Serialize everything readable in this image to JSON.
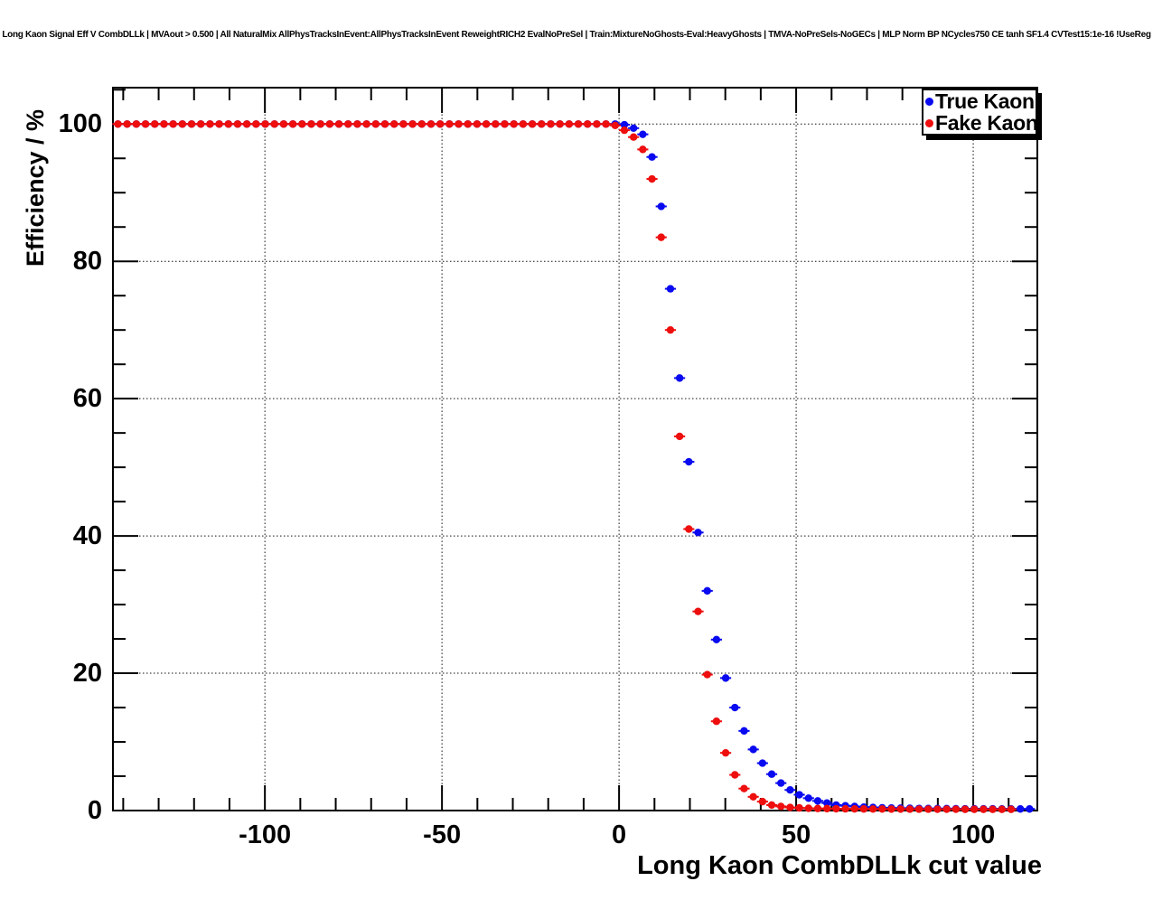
{
  "chart_data": {
    "type": "scatter",
    "title": "Long Kaon Signal Eff V CombDLLk | MVAout > 0.500 | All NaturalMix AllPhysTracksInEvent:AllPhysTracksInEvent ReweightRICH2 EvalNoPreSel | Train:MixtureNoGhosts-Eval:HeavyGhosts | TMVA-NoPreSels-NoGECs | MLP Norm BP NCycles750 CE tanh SF1.4 CVTest15:1e-16 !UseReg",
    "xlabel": "Long Kaon CombDLLk cut value",
    "ylabel": "Efficiency / %",
    "xlim": [
      -142.9,
      118.1
    ],
    "ylim": [
      0,
      105.3
    ],
    "xticks": [
      -100,
      -50,
      0,
      50,
      100
    ],
    "yticks": [
      0,
      20,
      40,
      60,
      80,
      100
    ],
    "x_minor_step": 10,
    "y_minor_step": 5,
    "grid": {
      "style": "dotted",
      "color": "#111111",
      "at_major_ticks": true
    },
    "frame_color": "#000000",
    "legend": {
      "position": "top-right",
      "shadow": true,
      "entries": [
        "True Kaon",
        "Fake Kaon"
      ]
    },
    "series": [
      {
        "name": "True Kaon",
        "color": "#0a0af0",
        "marker": "filled-circle",
        "points": [
          [
            -141.5,
            100
          ],
          [
            -138.9,
            100
          ],
          [
            -136.3,
            100
          ],
          [
            -133.7,
            100
          ],
          [
            -131.1,
            100
          ],
          [
            -128.5,
            100
          ],
          [
            -125.9,
            100
          ],
          [
            -123.3,
            100
          ],
          [
            -120.7,
            100
          ],
          [
            -118.1,
            100
          ],
          [
            -115.5,
            100
          ],
          [
            -112.9,
            100
          ],
          [
            -110.3,
            100
          ],
          [
            -107.7,
            100
          ],
          [
            -105.1,
            100
          ],
          [
            -102.5,
            100
          ],
          [
            -99.9,
            100
          ],
          [
            -97.3,
            100
          ],
          [
            -94.7,
            100
          ],
          [
            -92.1,
            100
          ],
          [
            -89.5,
            100
          ],
          [
            -86.9,
            100
          ],
          [
            -84.3,
            100
          ],
          [
            -81.7,
            100
          ],
          [
            -79.1,
            100
          ],
          [
            -76.5,
            100
          ],
          [
            -73.9,
            100
          ],
          [
            -71.3,
            100
          ],
          [
            -68.7,
            100
          ],
          [
            -66.1,
            100
          ],
          [
            -63.5,
            100
          ],
          [
            -60.9,
            100
          ],
          [
            -58.3,
            100
          ],
          [
            -55.7,
            100
          ],
          [
            -53.1,
            100
          ],
          [
            -50.5,
            100
          ],
          [
            -47.9,
            100
          ],
          [
            -45.3,
            100
          ],
          [
            -42.7,
            100
          ],
          [
            -40.1,
            100
          ],
          [
            -37.5,
            100
          ],
          [
            -34.9,
            100
          ],
          [
            -32.3,
            100
          ],
          [
            -29.7,
            100
          ],
          [
            -27.1,
            100
          ],
          [
            -24.5,
            100
          ],
          [
            -21.9,
            100
          ],
          [
            -19.3,
            100
          ],
          [
            -16.7,
            100
          ],
          [
            -14.1,
            100
          ],
          [
            -11.5,
            100
          ],
          [
            -8.9,
            100
          ],
          [
            -6.3,
            100
          ],
          [
            -3.7,
            100
          ],
          [
            -1.1,
            100
          ],
          [
            1.5,
            99.9
          ],
          [
            4.1,
            99.4
          ],
          [
            6.7,
            98.5
          ],
          [
            9.3,
            95.2
          ],
          [
            11.9,
            88.0
          ],
          [
            14.5,
            76.0
          ],
          [
            17.1,
            63.0
          ],
          [
            19.7,
            50.8
          ],
          [
            22.3,
            40.5
          ],
          [
            24.9,
            32.0
          ],
          [
            27.5,
            24.9
          ],
          [
            30.1,
            19.3
          ],
          [
            32.7,
            15.0
          ],
          [
            35.3,
            11.6
          ],
          [
            37.9,
            8.9
          ],
          [
            40.5,
            6.9
          ],
          [
            43.1,
            5.3
          ],
          [
            45.7,
            4.0
          ],
          [
            48.3,
            3.0
          ],
          [
            50.9,
            2.3
          ],
          [
            53.5,
            1.8
          ],
          [
            56.1,
            1.4
          ],
          [
            58.7,
            1.1
          ],
          [
            61.3,
            0.8
          ],
          [
            63.9,
            0.7
          ],
          [
            66.5,
            0.6
          ],
          [
            69.1,
            0.5
          ],
          [
            71.7,
            0.45
          ],
          [
            74.3,
            0.4
          ],
          [
            76.9,
            0.37
          ],
          [
            79.5,
            0.35
          ],
          [
            82.1,
            0.33
          ],
          [
            84.7,
            0.31
          ],
          [
            87.3,
            0.3
          ],
          [
            89.9,
            0.29
          ],
          [
            92.5,
            0.28
          ],
          [
            95.1,
            0.27
          ],
          [
            97.7,
            0.26
          ],
          [
            100.3,
            0.26
          ],
          [
            102.9,
            0.25
          ],
          [
            105.5,
            0.25
          ],
          [
            108.1,
            0.24
          ],
          [
            110.7,
            0.24
          ],
          [
            113.3,
            0.23
          ],
          [
            115.9,
            0.23
          ]
        ]
      },
      {
        "name": "Fake Kaon",
        "color": "#ee0e0e",
        "marker": "filled-circle",
        "points": [
          [
            -141.5,
            100
          ],
          [
            -138.9,
            100
          ],
          [
            -136.3,
            100
          ],
          [
            -133.7,
            100
          ],
          [
            -131.1,
            100
          ],
          [
            -128.5,
            100
          ],
          [
            -125.9,
            100
          ],
          [
            -123.3,
            100
          ],
          [
            -120.7,
            100
          ],
          [
            -118.1,
            100
          ],
          [
            -115.5,
            100
          ],
          [
            -112.9,
            100
          ],
          [
            -110.3,
            100
          ],
          [
            -107.7,
            100
          ],
          [
            -105.1,
            100
          ],
          [
            -102.5,
            100
          ],
          [
            -99.9,
            100
          ],
          [
            -97.3,
            100
          ],
          [
            -94.7,
            100
          ],
          [
            -92.1,
            100
          ],
          [
            -89.5,
            100
          ],
          [
            -86.9,
            100
          ],
          [
            -84.3,
            100
          ],
          [
            -81.7,
            100
          ],
          [
            -79.1,
            100
          ],
          [
            -76.5,
            100
          ],
          [
            -73.9,
            100
          ],
          [
            -71.3,
            100
          ],
          [
            -68.7,
            100
          ],
          [
            -66.1,
            100
          ],
          [
            -63.5,
            100
          ],
          [
            -60.9,
            100
          ],
          [
            -58.3,
            100
          ],
          [
            -55.7,
            100
          ],
          [
            -53.1,
            100
          ],
          [
            -50.5,
            100
          ],
          [
            -47.9,
            100
          ],
          [
            -45.3,
            100
          ],
          [
            -42.7,
            100
          ],
          [
            -40.1,
            100
          ],
          [
            -37.5,
            100
          ],
          [
            -34.9,
            100
          ],
          [
            -32.3,
            100
          ],
          [
            -29.7,
            100
          ],
          [
            -27.1,
            100
          ],
          [
            -24.5,
            100
          ],
          [
            -21.9,
            100
          ],
          [
            -19.3,
            100
          ],
          [
            -16.7,
            100
          ],
          [
            -14.1,
            100
          ],
          [
            -11.5,
            100
          ],
          [
            -8.9,
            100
          ],
          [
            -6.3,
            100
          ],
          [
            -3.7,
            100
          ],
          [
            -1.1,
            99.8
          ],
          [
            1.5,
            99.1
          ],
          [
            4.1,
            98.1
          ],
          [
            6.7,
            96.3
          ],
          [
            9.3,
            92.0
          ],
          [
            11.9,
            83.5
          ],
          [
            14.5,
            70.0
          ],
          [
            17.1,
            54.5
          ],
          [
            19.7,
            41.0
          ],
          [
            22.3,
            29.0
          ],
          [
            24.9,
            19.8
          ],
          [
            27.5,
            13.0
          ],
          [
            30.1,
            8.4
          ],
          [
            32.7,
            5.2
          ],
          [
            35.3,
            3.2
          ],
          [
            37.9,
            2.0
          ],
          [
            40.5,
            1.3
          ],
          [
            43.1,
            0.8
          ],
          [
            45.7,
            0.6
          ],
          [
            48.3,
            0.45
          ],
          [
            50.9,
            0.38
          ],
          [
            53.5,
            0.33
          ],
          [
            56.1,
            0.3
          ],
          [
            58.7,
            0.28
          ],
          [
            61.3,
            0.26
          ],
          [
            63.9,
            0.25
          ],
          [
            66.5,
            0.24
          ],
          [
            69.1,
            0.23
          ],
          [
            71.7,
            0.22
          ],
          [
            74.3,
            0.22
          ],
          [
            76.9,
            0.21
          ],
          [
            79.5,
            0.21
          ],
          [
            82.1,
            0.2
          ],
          [
            84.7,
            0.2
          ],
          [
            87.3,
            0.2
          ],
          [
            89.9,
            0.19
          ],
          [
            92.5,
            0.19
          ],
          [
            95.1,
            0.19
          ],
          [
            97.7,
            0.18
          ],
          [
            100.3,
            0.18
          ],
          [
            102.9,
            0.18
          ],
          [
            105.5,
            0.17
          ],
          [
            108.1,
            0.17
          ],
          [
            110.7,
            0.17
          ]
        ]
      }
    ]
  }
}
